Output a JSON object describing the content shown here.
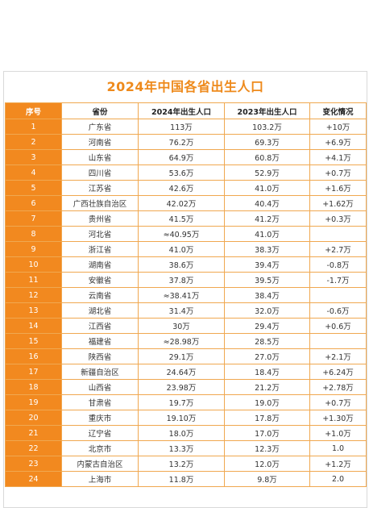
{
  "title": "2024年中国各省出生人口",
  "headers": [
    "序号",
    "省份",
    "2024年出生人口",
    "2023年出生人口",
    "变化情况"
  ],
  "rows": [
    [
      "1",
      "广东省",
      "113万",
      "103.2万",
      "+10万"
    ],
    [
      "2",
      "河南省",
      "76.2万",
      "69.3万",
      "+6.9万"
    ],
    [
      "3",
      "山东省",
      "64.9万",
      "60.8万",
      "+4.1万"
    ],
    [
      "4",
      "四川省",
      "53.6万",
      "52.9万",
      "+0.7万"
    ],
    [
      "5",
      "江苏省",
      "42.6万",
      "41.0万",
      "+1.6万"
    ],
    [
      "6",
      "广西壮族自治区",
      "42.02万",
      "40.4万",
      "+1.62万"
    ],
    [
      "7",
      "贵州省",
      "41.5万",
      "41.2万",
      "+0.3万"
    ],
    [
      "8",
      "河北省",
      "≈40.95万",
      "41.0万",
      ""
    ],
    [
      "9",
      "浙江省",
      "41.0万",
      "38.3万",
      "+2.7万"
    ],
    [
      "10",
      "湖南省",
      "38.6万",
      "39.4万",
      "-0.8万"
    ],
    [
      "11",
      "安徽省",
      "37.8万",
      "39.5万",
      "-1.7万"
    ],
    [
      "12",
      "云南省",
      "≈38.41万",
      "38.4万",
      ""
    ],
    [
      "13",
      "湖北省",
      "31.4万",
      "32.0万",
      "-0.6万"
    ],
    [
      "14",
      "江西省",
      "30万",
      "29.4万",
      "+0.6万"
    ],
    [
      "15",
      "福建省",
      "≈28.98万",
      "28.5万",
      ""
    ],
    [
      "16",
      "陕西省",
      "29.1万",
      "27.0万",
      "+2.1万"
    ],
    [
      "17",
      "新疆自治区",
      "24.64万",
      "18.4万",
      "+6.24万"
    ],
    [
      "18",
      "山西省",
      "23.98万",
      "21.2万",
      "+2.78万"
    ],
    [
      "19",
      "甘肃省",
      "19.7万",
      "19.0万",
      "+0.7万"
    ],
    [
      "20",
      "重庆市",
      "19.10万",
      "17.8万",
      "+1.30万"
    ],
    [
      "21",
      "辽宁省",
      "18.0万",
      "17.0万",
      "+1.0万"
    ],
    [
      "22",
      "北京市",
      "13.3万",
      "12.3万",
      "1.0"
    ],
    [
      "23",
      "内蒙古自治区",
      "13.2万",
      "12.0万",
      "+1.2万"
    ],
    [
      "24",
      "上海市",
      "11.8万",
      "9.8万",
      "2.0"
    ]
  ]
}
